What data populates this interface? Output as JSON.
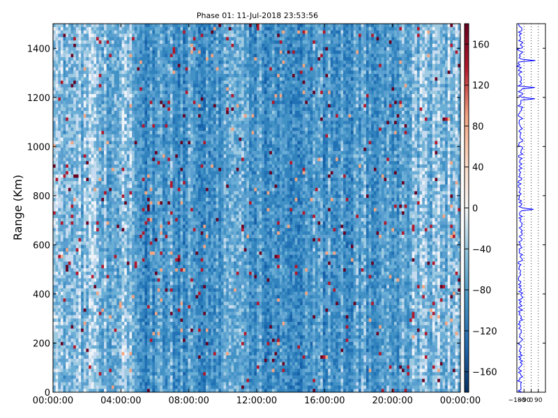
{
  "chart_data": [
    {
      "type": "heatmap",
      "title": "Phase 01: 11-Jul-2018 23:53:56",
      "ylabel": "Range (Km)",
      "xlabel": "",
      "x_ticks": [
        "00:00:00",
        "04:00:00",
        "08:00:00",
        "12:00:00",
        "16:00:00",
        "20:00:00",
        "00:00:00"
      ],
      "x_range_hours": [
        0,
        24
      ],
      "y_ticks": [
        0,
        200,
        400,
        600,
        800,
        1000,
        1200,
        1400
      ],
      "y_range": [
        0,
        1500
      ],
      "colorbar": {
        "ticks": [
          -160,
          -120,
          -80,
          -40,
          0,
          40,
          80,
          120,
          160
        ],
        "range": [
          -180,
          180
        ],
        "colormap": "RdBu_r",
        "low_color": "#053061",
        "mid_color": "#f7f7f7",
        "high_color": "#67001f"
      },
      "grid": false
    },
    {
      "type": "line",
      "title": "",
      "ylabel": "",
      "xlabel": "",
      "x_ticks": [
        -180,
        -90,
        0,
        90
      ],
      "x_range": [
        -180,
        180
      ],
      "y_range": [
        0,
        1500
      ],
      "line_color": "#0000ff",
      "grid": true
    }
  ]
}
